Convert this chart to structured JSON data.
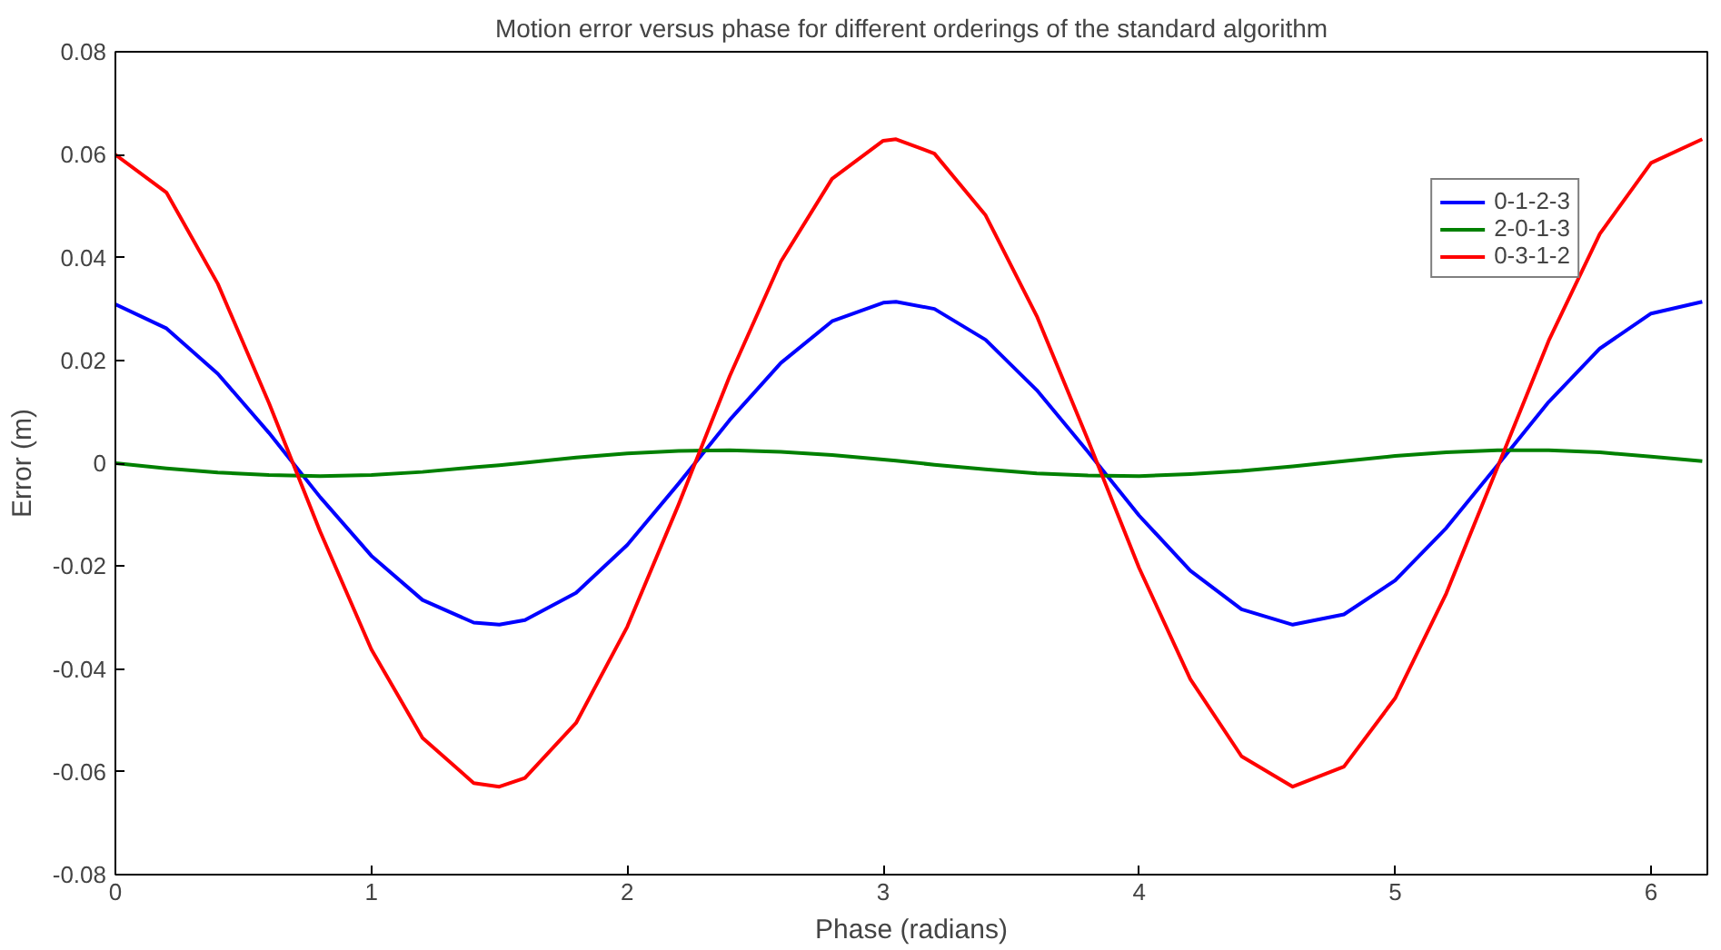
{
  "chart_data": {
    "type": "line",
    "title": "Motion error versus phase for different orderings of the standard algorithm",
    "xlabel": "Phase (radians)",
    "ylabel": "Error (m)",
    "x": [
      0,
      0.2,
      0.4,
      0.6,
      0.8,
      1.0,
      1.2,
      1.4,
      1.5,
      1.6,
      1.8,
      2.0,
      2.2,
      2.4,
      2.6,
      2.8,
      3.0,
      3.05,
      3.2,
      3.4,
      3.6,
      3.8,
      4.0,
      4.2,
      4.4,
      4.6,
      4.8,
      5.0,
      5.2,
      5.4,
      5.6,
      5.8,
      6.0,
      6.2
    ],
    "series": [
      {
        "name": "0-1-2-3",
        "color": "#0000ff",
        "values": [
          0.0309,
          0.0262,
          0.0174,
          0.0059,
          -0.0066,
          -0.018,
          -0.0266,
          -0.031,
          -0.0314,
          -0.0305,
          -0.0252,
          -0.0159,
          -0.004,
          0.0084,
          0.0195,
          0.0276,
          0.0312,
          0.0314,
          0.03,
          0.024,
          0.0142,
          0.0022,
          -0.0102,
          -0.0209,
          -0.0284,
          -0.0314,
          -0.0294,
          -0.0228,
          -0.0126,
          -0.0004,
          0.0119,
          0.0223,
          0.0291,
          0.0314
        ]
      },
      {
        "name": "2-0-1-3",
        "color": "#008000",
        "values": [
          0,
          -0.001,
          -0.0018,
          -0.0023,
          -0.0025,
          -0.0023,
          -0.0017,
          -0.0008,
          -0.0004,
          0.0001,
          0.0011,
          0.0019,
          0.0024,
          0.0025,
          0.0022,
          0.0016,
          0.0007,
          0.0005,
          -0.0003,
          -0.0012,
          -0.002,
          -0.0024,
          -0.0025,
          -0.0021,
          -0.0015,
          -0.0006,
          0.0004,
          0.0014,
          0.0021,
          0.0025,
          0.0025,
          0.0021,
          0.0013,
          0.0004
        ]
      },
      {
        "name": "0-3-1-2",
        "color": "#ff0000",
        "values": [
          0.06,
          0.0526,
          0.0349,
          0.0117,
          -0.0133,
          -0.0362,
          -0.0534,
          -0.0622,
          -0.0629,
          -0.0612,
          -0.0505,
          -0.0318,
          -0.0081,
          0.0169,
          0.0392,
          0.0553,
          0.0627,
          0.063,
          0.0602,
          0.0482,
          0.0286,
          0.0045,
          -0.0204,
          -0.042,
          -0.057,
          -0.0629,
          -0.059,
          -0.0457,
          -0.0253,
          -0.0008,
          0.0238,
          0.0446,
          0.0584,
          0.063
        ]
      }
    ],
    "xlim": [
      0,
      6.22
    ],
    "xticks": [
      0,
      1,
      2,
      3,
      4,
      5,
      6
    ],
    "ylim": [
      -0.08,
      0.08
    ],
    "yticks": [
      {
        "value": -0.08,
        "label": "-0.08"
      },
      {
        "value": -0.06,
        "label": "-0.06"
      },
      {
        "value": -0.04,
        "label": "-0.04"
      },
      {
        "value": -0.02,
        "label": "-0.02"
      },
      0,
      {
        "value": 0.02,
        "label": "0.02"
      },
      {
        "value": 0.04,
        "label": "0.04"
      },
      {
        "value": 0.06,
        "label": "0.06"
      },
      {
        "value": 0.08,
        "label": "0.08"
      }
    ],
    "grid": false,
    "legend": "top right",
    "marker": "none",
    "line_style": "solid"
  }
}
